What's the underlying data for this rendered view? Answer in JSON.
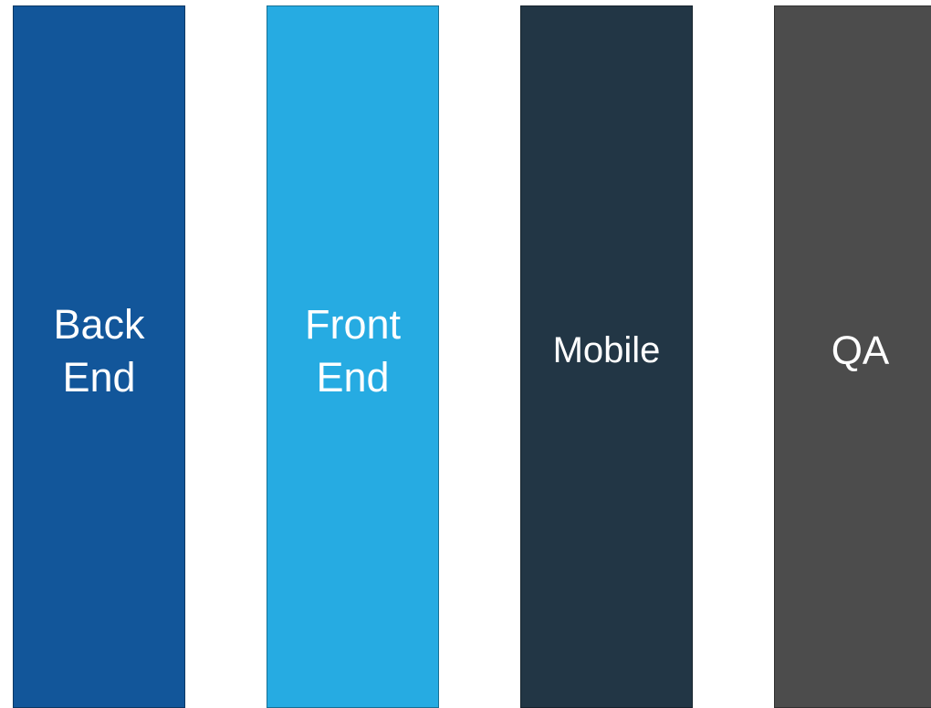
{
  "columns": [
    {
      "label": "Back\nEnd",
      "color": "#12569a"
    },
    {
      "label": "Front\nEnd",
      "color": "#26abe2"
    },
    {
      "label": "Mobile",
      "color": "#223645"
    },
    {
      "label": "QA",
      "color": "#4c4c4c"
    }
  ]
}
